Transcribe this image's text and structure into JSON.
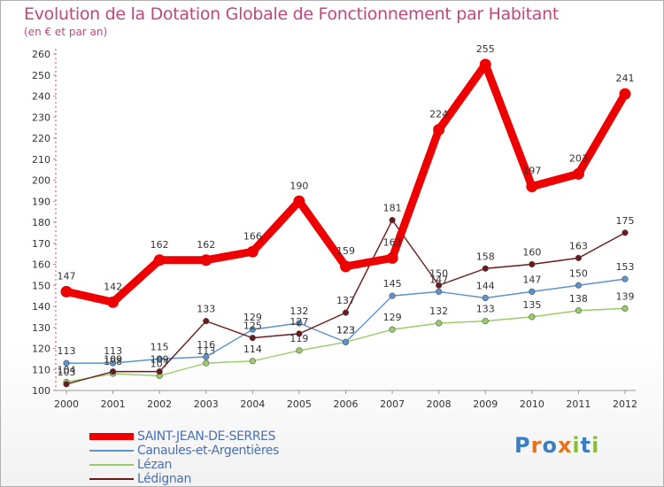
{
  "chart_data": {
    "type": "line",
    "title": "Evolution de la Dotation Globale de Fonctionnement par Habitant",
    "subtitle": "(en € et par an)",
    "xlabel": "",
    "ylabel": "",
    "categories": [
      "2000",
      "2001",
      "2002",
      "2003",
      "2004",
      "2005",
      "2006",
      "2007",
      "2008",
      "2009",
      "2010",
      "2011",
      "2012"
    ],
    "ylim": [
      100,
      260
    ],
    "yticks": [
      100,
      110,
      120,
      130,
      140,
      150,
      160,
      170,
      180,
      190,
      200,
      210,
      220,
      230,
      240,
      250,
      260
    ],
    "grid": false,
    "legend_position": "bottom-left",
    "series": [
      {
        "name": "SAINT-JEAN-DE-SERRES",
        "color": "#ee0000",
        "values": [
          147,
          142,
          162,
          162,
          166,
          190,
          159,
          163,
          224,
          255,
          197,
          203,
          241
        ]
      },
      {
        "name": "Canaules-et-Argentières",
        "color": "#5b93cc",
        "values": [
          113,
          113,
          115,
          116,
          129,
          132,
          123,
          145,
          147,
          144,
          147,
          150,
          153
        ]
      },
      {
        "name": "Lézan",
        "color": "#99cc66",
        "values": [
          104,
          108,
          107,
          113,
          114,
          119,
          123,
          129,
          132,
          133,
          135,
          138,
          139
        ]
      },
      {
        "name": "Lédignan",
        "color": "#6b1a1a",
        "values": [
          103,
          109,
          109,
          133,
          125,
          127,
          137,
          181,
          150,
          158,
          160,
          163,
          175
        ]
      }
    ]
  },
  "branding": {
    "logo_letters": [
      "P",
      "r",
      "o",
      "x",
      "i",
      "t",
      "i"
    ],
    "logo_colors": [
      "#3a7fc4",
      "#e8731e",
      "#3a7fc4",
      "#e8731e",
      "#8cbd3a",
      "#3a7fc4",
      "#8cbd3a"
    ]
  }
}
